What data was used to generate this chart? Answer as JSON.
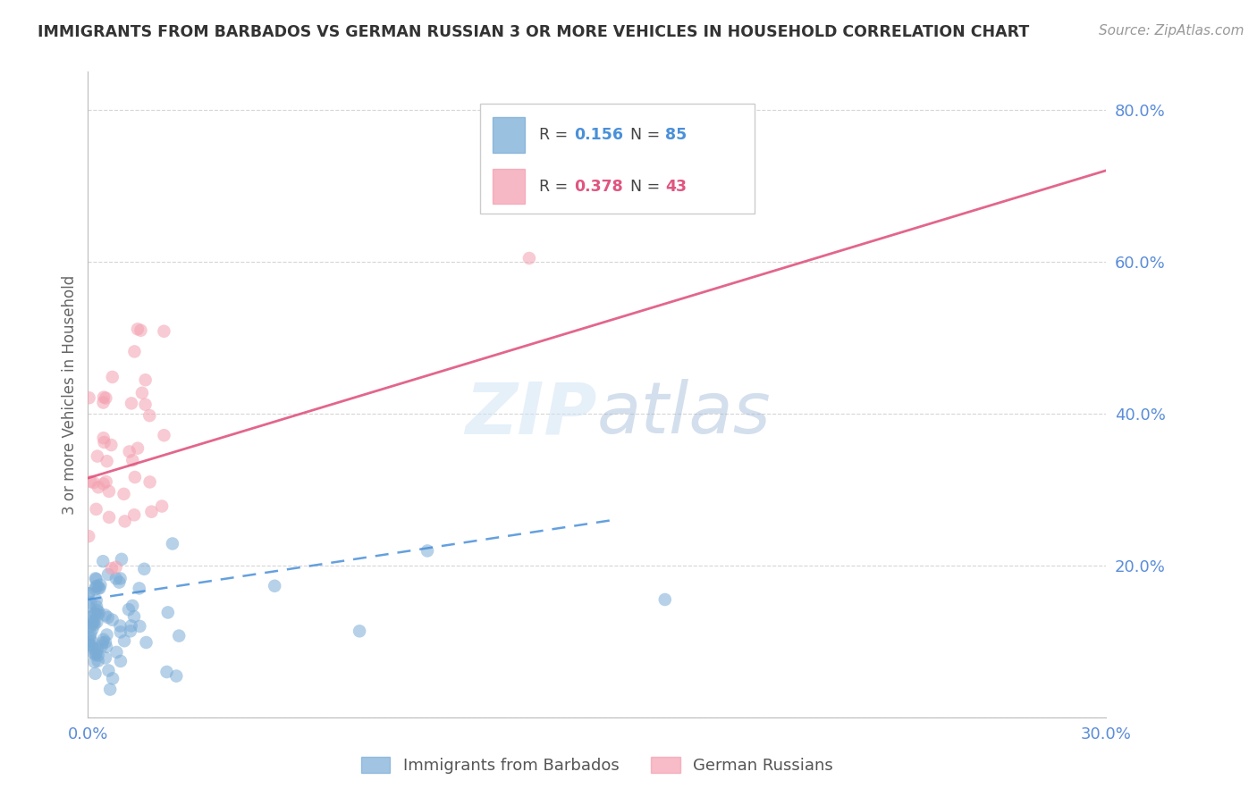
{
  "title": "IMMIGRANTS FROM BARBADOS VS GERMAN RUSSIAN 3 OR MORE VEHICLES IN HOUSEHOLD CORRELATION CHART",
  "source": "Source: ZipAtlas.com",
  "ylabel": "3 or more Vehicles in Household",
  "xlim": [
    0.0,
    0.3
  ],
  "ylim": [
    0.0,
    0.85
  ],
  "x_ticks": [
    0.0,
    0.05,
    0.1,
    0.15,
    0.2,
    0.25,
    0.3
  ],
  "x_tick_labels": [
    "0.0%",
    "",
    "",
    "",
    "",
    "",
    "30.0%"
  ],
  "y_ticks": [
    0.0,
    0.2,
    0.4,
    0.6,
    0.8
  ],
  "y_tick_labels": [
    "",
    "20.0%",
    "40.0%",
    "60.0%",
    "80.0%"
  ],
  "series1_label": "Immigrants from Barbados",
  "series2_label": "German Russians",
  "R1": 0.156,
  "N1": 85,
  "R2": 0.378,
  "N2": 43,
  "color1": "#7aacd6",
  "color2": "#f4a0b0",
  "line1_color": "#4a90d9",
  "line2_color": "#e05580",
  "background_color": "#ffffff",
  "grid_color": "#cccccc",
  "tick_color": "#5b8dd9",
  "title_color": "#333333",
  "blue_line_x": [
    0.0,
    0.155
  ],
  "blue_line_y": [
    0.155,
    0.26
  ],
  "pink_line_x": [
    0.0,
    0.3
  ],
  "pink_line_y": [
    0.315,
    0.72
  ]
}
